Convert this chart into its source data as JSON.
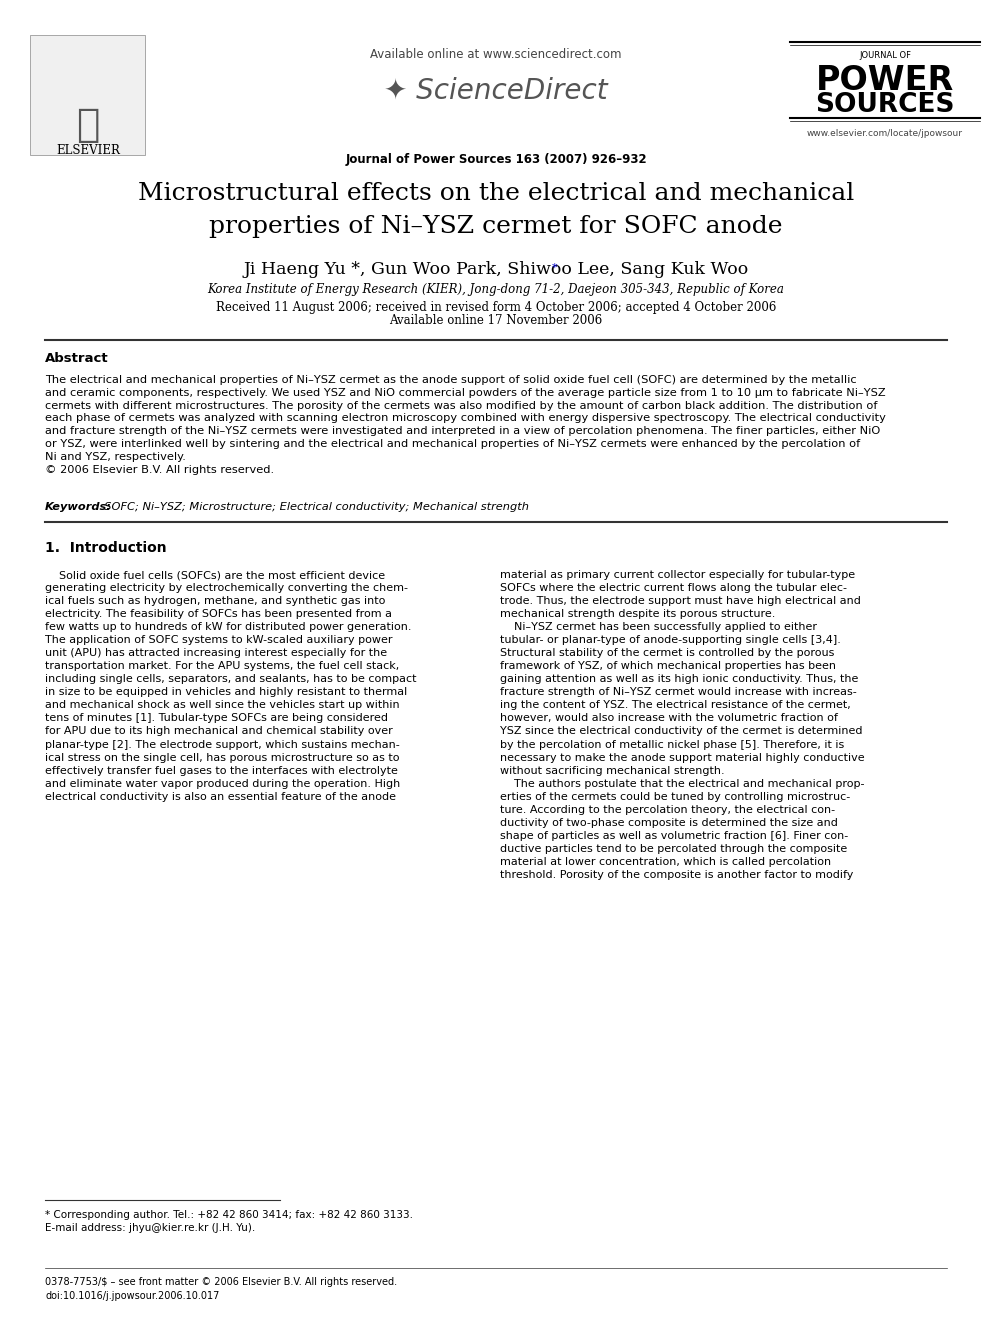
{
  "bg_color": "#ffffff",
  "text_color": "#000000",
  "header": {
    "available_online": "Available online at www.sciencedirect.com",
    "journal_line": "Journal of Power Sources 163 (2007) 926–932",
    "website": "www.elsevier.com/locate/jpowsour",
    "elsevier_text": "ELSEVIER",
    "journal_of": "JOURNAL OF",
    "power": "POWER",
    "sources": "SOURCES"
  },
  "title": "Microstructural effects on the electrical and mechanical\nproperties of Ni–YSZ cermet for SOFC anode",
  "authors": "Ji Haeng Yu *, Gun Woo Park, Shiwoo Lee, Sang Kuk Woo",
  "affiliation": "Korea Institute of Energy Research (KIER), Jong-dong 71-2, Daejeon 305-343, Republic of Korea",
  "dates": "Received 11 August 2006; received in revised form 4 October 2006; accepted 4 October 2006",
  "available": "Available online 17 November 2006",
  "abstract_title": "Abstract",
  "abstract_text": "The electrical and mechanical properties of Ni–YSZ cermet as the anode support of solid oxide fuel cell (SOFC) are determined by the metallic\nand ceramic components, respectively. We used YSZ and NiO commercial powders of the average particle size from 1 to 10 μm to fabricate Ni–YSZ\ncermets with different microstructures. The porosity of the cermets was also modified by the amount of carbon black addition. The distribution of\neach phase of cermets was analyzed with scanning electron microscopy combined with energy dispersive spectroscopy. The electrical conductivity\nand fracture strength of the Ni–YSZ cermets were investigated and interpreted in a view of percolation phenomena. The finer particles, either NiO\nor YSZ, were interlinked well by sintering and the electrical and mechanical properties of Ni–YSZ cermets were enhanced by the percolation of\nNi and YSZ, respectively.\n© 2006 Elsevier B.V. All rights reserved.",
  "keywords_label": "Keywords:",
  "keywords_text": "  SOFC; Ni–YSZ; Microstructure; Electrical conductivity; Mechanical strength",
  "section1_title": "1.  Introduction",
  "col1_intro": "    Solid oxide fuel cells (SOFCs) are the most efficient device\ngenerating electricity by electrochemically converting the chem-\nical fuels such as hydrogen, methane, and synthetic gas into\nelectricity. The feasibility of SOFCs has been presented from a\nfew watts up to hundreds of kW for distributed power generation.\nThe application of SOFC systems to kW-scaled auxiliary power\nunit (APU) has attracted increasing interest especially for the\ntransportation market. For the APU systems, the fuel cell stack,\nincluding single cells, separators, and sealants, has to be compact\nin size to be equipped in vehicles and highly resistant to thermal\nand mechanical shock as well since the vehicles start up within\ntens of minutes [1]. Tubular-type SOFCs are being considered\nfor APU due to its high mechanical and chemical stability over\nplanar-type [2]. The electrode support, which sustains mechan-\nical stress on the single cell, has porous microstructure so as to\neffectively transfer fuel gases to the interfaces with electrolyte\nand eliminate water vapor produced during the operation. High\nelectrical conductivity is also an essential feature of the anode",
  "col2_intro": "material as primary current collector especially for tubular-type\nSOFCs where the electric current flows along the tubular elec-\ntrode. Thus, the electrode support must have high electrical and\nmechanical strength despite its porous structure.\n    Ni–YSZ cermet has been successfully applied to either\ntubular- or planar-type of anode-supporting single cells [3,4].\nStructural stability of the cermet is controlled by the porous\nframework of YSZ, of which mechanical properties has been\ngaining attention as well as its high ionic conductivity. Thus, the\nfracture strength of Ni–YSZ cermet would increase with increas-\ning the content of YSZ. The electrical resistance of the cermet,\nhowever, would also increase with the volumetric fraction of\nYSZ since the electrical conductivity of the cermet is determined\nby the percolation of metallic nickel phase [5]. Therefore, it is\nnecessary to make the anode support material highly conductive\nwithout sacrificing mechanical strength.\n    The authors postulate that the electrical and mechanical prop-\nerties of the cermets could be tuned by controlling microstruc-\nture. According to the percolation theory, the electrical con-\nductivity of two-phase composite is determined the size and\nshape of particles as well as volumetric fraction [6]. Finer con-\nductive particles tend to be percolated through the composite\nmaterial at lower concentration, which is called percolation\nthreshold. Porosity of the composite is another factor to modify",
  "footnote_star": "* Corresponding author. Tel.: +82 42 860 3414; fax: +82 42 860 3133.",
  "footnote_email": "E-mail address: jhyu@kier.re.kr (J.H. Yu).",
  "footer_issn": "0378-7753/$ – see front matter © 2006 Elsevier B.V. All rights reserved.",
  "footer_doi": "doi:10.1016/j.jpowsour.2006.10.017"
}
